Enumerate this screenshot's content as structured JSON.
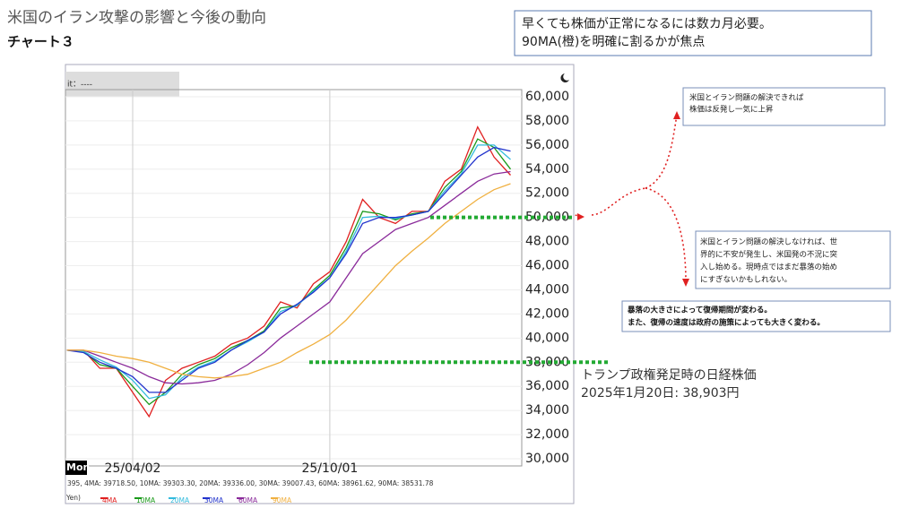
{
  "slide": {
    "title": "米国のイラン攻撃の影響と今後の動向",
    "subtitle": "チャート３",
    "top_note": [
      "早くても株価が正常になるには数カ月必要。",
      "90MA(橙)を明確に割るかが焦点"
    ],
    "up_note": [
      "米国とイラン問題の解決できれば",
      "株価は反発し一気に上昇"
    ],
    "down_note": [
      "米国とイラン問題の解決しなければ、世",
      "界的に不安が発生し、米国発の不況に突",
      "入し始める。現時点ではまだ暴落の始め",
      "にすぎないかもしれない。"
    ],
    "recovery_note": [
      "暴落の大きさによって復帰期間が変わる。",
      "また、復帰の速度は政府の施策によっても大きく変わる。"
    ],
    "trump_note": [
      "トランプ政権発足時の日経株価",
      "2025年1月20日: 38,903円"
    ]
  },
  "chart_data": {
    "type": "line",
    "header_label": "it：----",
    "weekday_label": "Mon",
    "ma_readout": "395, 4MA: 39718.50, 10MA: 39303.30, 20MA: 39336.00, 30MA: 39007.43, 60MA: 38961.62, 90MA: 38531.78",
    "unit_label": "Yen)",
    "categories": [
      null,
      null,
      null,
      null,
      "25/04/02",
      null,
      null,
      null,
      null,
      null,
      null,
      null,
      null,
      null,
      null,
      null,
      "25/10/01",
      null,
      null,
      null,
      null,
      null,
      null,
      null,
      null,
      null,
      null,
      null
    ],
    "series": [
      {
        "name": "4MA",
        "color": "#e02020",
        "values": [
          39000,
          39000,
          37500,
          37500,
          35500,
          33500,
          36500,
          37500,
          38000,
          38500,
          39500,
          40000,
          41000,
          43000,
          42500,
          44500,
          45500,
          48000,
          51500,
          50000,
          49500,
          50500,
          50500,
          53000,
          54000,
          57500,
          55000,
          53500
        ]
      },
      {
        "name": "10MA",
        "color": "#1a9a1a",
        "values": [
          39000,
          38900,
          37800,
          37500,
          36000,
          34500,
          35500,
          37000,
          37800,
          38300,
          39200,
          39800,
          40600,
          42500,
          42700,
          44000,
          45200,
          47500,
          50500,
          50300,
          49800,
          50300,
          50500,
          52500,
          53800,
          56500,
          55800,
          54000
        ]
      },
      {
        "name": "20MA",
        "color": "#33bbdd",
        "values": [
          39000,
          38900,
          38200,
          37600,
          36500,
          35000,
          35300,
          36700,
          37600,
          38100,
          39000,
          39700,
          40500,
          42200,
          42700,
          43900,
          45000,
          47200,
          50000,
          50100,
          49900,
          50200,
          50500,
          52200,
          53600,
          56000,
          56000,
          54800
        ]
      },
      {
        "name": "30MA",
        "color": "#2233cc",
        "values": [
          39000,
          38800,
          38000,
          37500,
          36800,
          35500,
          35500,
          36500,
          37500,
          38000,
          39000,
          39800,
          40500,
          42000,
          42800,
          43800,
          45000,
          47000,
          49500,
          50000,
          50000,
          50200,
          50500,
          52000,
          53500,
          55000,
          55800,
          55500
        ]
      },
      {
        "name": "60MA",
        "color": "#8a2a9a",
        "values": [
          39000,
          39000,
          38500,
          38000,
          37500,
          36800,
          36300,
          36200,
          36300,
          36500,
          37000,
          37800,
          38800,
          40000,
          41000,
          42000,
          43000,
          45000,
          47000,
          48000,
          49000,
          49500,
          50000,
          51000,
          52000,
          53000,
          53600,
          53800
        ]
      },
      {
        "name": "90MA",
        "color": "#f0b040",
        "values": [
          39000,
          39000,
          38800,
          38500,
          38300,
          38000,
          37500,
          37000,
          36800,
          36700,
          36800,
          37000,
          37500,
          38000,
          38800,
          39500,
          40300,
          41500,
          43000,
          44500,
          46000,
          47200,
          48300,
          49500,
          50500,
          51500,
          52300,
          52800
        ]
      }
    ],
    "reference_lines": [
      50000,
      38000
    ],
    "reference_color": "#22aa33",
    "ylim": [
      30000,
      60000
    ],
    "yticks": [
      {
        "value": 30000,
        "label": "30,000"
      },
      {
        "value": 32000,
        "label": "32,000"
      },
      {
        "value": 34000,
        "label": "34,000"
      },
      {
        "value": 36000,
        "label": "36,000"
      },
      {
        "value": 38000,
        "label": "38,000"
      },
      {
        "value": 40000,
        "label": "40,000"
      },
      {
        "value": 42000,
        "label": "42,000"
      },
      {
        "value": 44000,
        "label": "44,000"
      },
      {
        "value": 46000,
        "label": "46,000"
      },
      {
        "value": 48000,
        "label": "48,000"
      },
      {
        "value": 50000,
        "label": "50,000"
      },
      {
        "value": 52000,
        "label": "52,000"
      },
      {
        "value": 54000,
        "label": "54,000"
      },
      {
        "value": 56000,
        "label": "56,000"
      },
      {
        "value": 58000,
        "label": "58,000"
      },
      {
        "value": 60000,
        "label": "60,000"
      }
    ],
    "grid": true
  }
}
